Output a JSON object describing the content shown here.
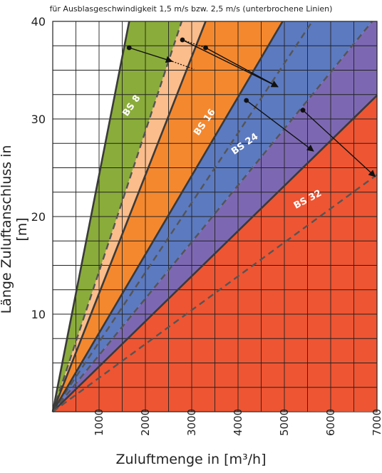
{
  "chart_data": {
    "type": "line",
    "title": "für Ausblasgeschwindigkeit 1,5 m/s bzw. 2,5 m/s (unterbrochene Linien)",
    "xlabel": "Zuluftmenge in [m³/h]",
    "ylabel": "Länge Zuluftanschluss in [m]",
    "xlim": [
      0,
      7000
    ],
    "ylim": [
      0,
      40
    ],
    "x_ticks": [
      "1000",
      "2000",
      "3000",
      "4000",
      "5000",
      "6000",
      "7000"
    ],
    "y_ticks": [
      "10",
      "20",
      "30",
      "40"
    ],
    "grid": true,
    "series": [
      {
        "name": "BS 8",
        "slope_solid": 0.02423,
        "slope_dashed": 0.01437,
        "fill_main": "#8aac3b",
        "fill_light": "#fbbd8b"
      },
      {
        "name": "BS 16",
        "slope_solid": 0.01212,
        "slope_dashed": 0.00714,
        "fill_main": "#f4882f",
        "fill_light": "#9ea3d4"
      },
      {
        "name": "BS 24",
        "slope_solid": 0.00806,
        "slope_dashed": 0.0058,
        "fill_main": "#5c7ac0",
        "fill_light": "#7c68b2"
      },
      {
        "name": "BS 32",
        "slope_solid": 0.00463,
        "slope_dashed": 0.00347,
        "fill_main": "#ee5533",
        "fill_light": "#ee5533"
      }
    ],
    "annotations": [
      {
        "from": [
          1650,
          37.3
        ],
        "to": [
          2580,
          35.9
        ]
      },
      {
        "from": [
          2800,
          38.1
        ],
        "to": [
          4860,
          33.3
        ]
      },
      {
        "from": [
          3300,
          37.3
        ],
        "to": [
          4860,
          33.3
        ]
      },
      {
        "from": [
          4180,
          31.9
        ],
        "to": [
          5630,
          26.7
        ]
      },
      {
        "from": [
          5400,
          30.9
        ],
        "to": [
          6960,
          24.1
        ]
      }
    ],
    "label_texts": [
      "BS 8",
      "BS 16",
      "BS 24",
      "BS 32"
    ]
  },
  "colors": {
    "green": "#8aac3b",
    "peach": "#fbbd8b",
    "orange": "#f4882f",
    "lavender": "#9ea3d4",
    "blue": "#5c7ac0",
    "purple": "#7c68b2",
    "red": "#ee5533"
  }
}
